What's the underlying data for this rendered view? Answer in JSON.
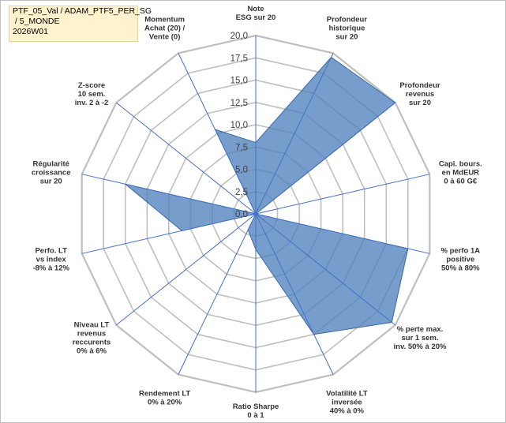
{
  "chart_data": {
    "type": "radar",
    "title_lines": [
      "PTF_05_Val / ADAM_PTF5_PER_SG",
      " / 5_MONDE",
      "2026W01"
    ],
    "rmin": 0,
    "rmax": 20,
    "ticks": [
      0,
      2.5,
      5,
      7.5,
      10,
      12.5,
      15,
      17.5,
      20
    ],
    "tick_labels": [
      "0,0",
      "2,5",
      "5,0",
      "7,5",
      "10,0",
      "12,5",
      "15,0",
      "17,5",
      "20,0"
    ],
    "fill_color": "#4f81bd",
    "grid_color": "#bfbfbf",
    "spoke_color": "#4472c4",
    "axes": [
      {
        "label": [
          "Note",
          "ESG sur 20"
        ],
        "value": 8
      },
      {
        "label": [
          "Profondeur",
          "historique",
          "sur 20"
        ],
        "value": 19.5
      },
      {
        "label": [
          "Profondeur",
          "revenus",
          "sur 20"
        ],
        "value": 20
      },
      {
        "label": [
          "Capi. bours.",
          "en MdEUR",
          "0 à 60 G€"
        ],
        "value": 0
      },
      {
        "label": [
          "% perfo 1A",
          "positive",
          "50% à 80%"
        ],
        "value": 17.5
      },
      {
        "label": [
          "% perte max.",
          "sur 1 sem.",
          "inv. 50% à 20%"
        ],
        "value": 19.5
      },
      {
        "label": [
          "Volatilité LT",
          "inversée",
          "40% à 0%"
        ],
        "value": 15
      },
      {
        "label": [
          "Ratio Sharpe",
          "0 à 1"
        ],
        "value": 4
      },
      {
        "label": [
          "Rendement LT",
          "0% à 20%"
        ],
        "value": 2
      },
      {
        "label": [
          "Niveau LT",
          "revenus",
          "reccurents",
          "0% à 6%"
        ],
        "value": 0
      },
      {
        "label": [
          "Perfo. LT",
          "vs index",
          "-8% à 12%"
        ],
        "value": 8.5
      },
      {
        "label": [
          "Régularité",
          "croissance",
          "sur 20"
        ],
        "value": 15
      },
      {
        "label": [
          "Z-score",
          "10 sem.",
          "inv. 2 à -2"
        ],
        "value": 0
      },
      {
        "label": [
          "Momentum",
          "Achat (20) /",
          "Vente (0)"
        ],
        "value": 10.5
      }
    ]
  }
}
